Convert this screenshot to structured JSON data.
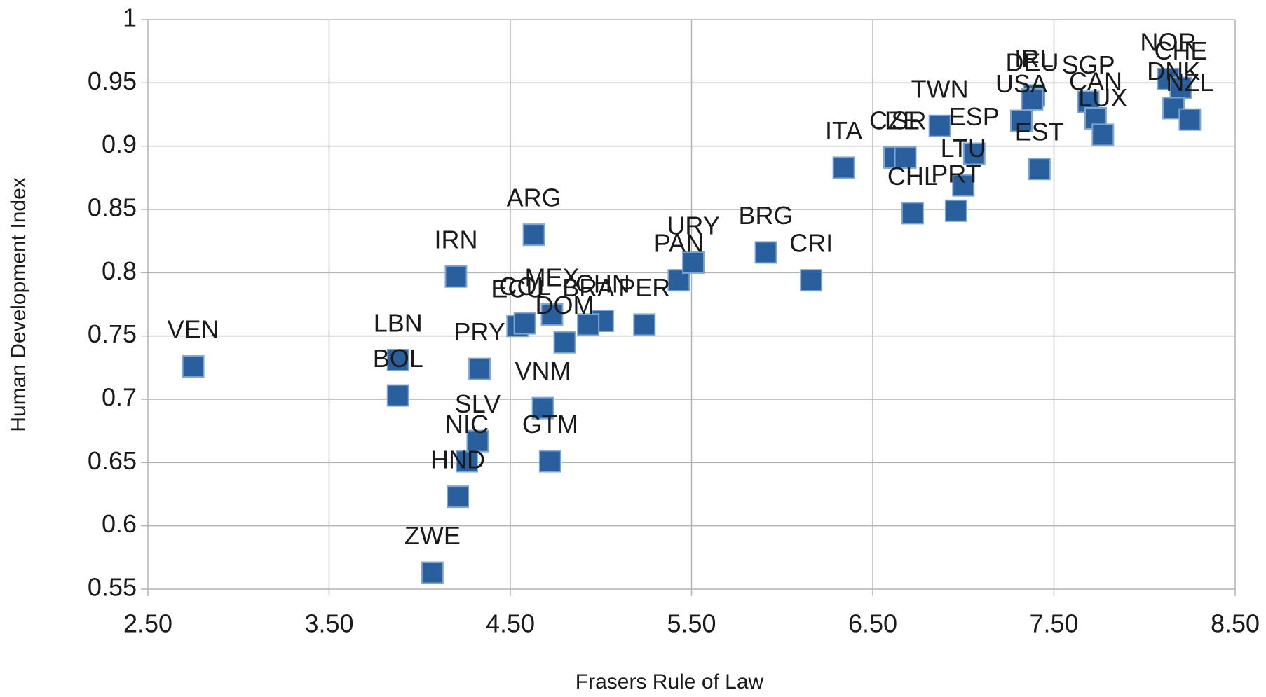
{
  "chart_data": {
    "type": "scatter",
    "x_label": "Frasers Rule of Law",
    "y_label": "Human Development Index",
    "color": "#2a5f9e",
    "grid": true,
    "xlim": [
      2.5,
      8.5
    ],
    "ylim": [
      0.55,
      1
    ],
    "xticks": [
      {
        "value": 2.5,
        "label": "2.50"
      },
      {
        "value": 3.5,
        "label": "3.50"
      },
      {
        "value": 4.5,
        "label": "4.50"
      },
      {
        "value": 5.5,
        "label": "5.50"
      },
      {
        "value": 6.5,
        "label": "6.50"
      },
      {
        "value": 7.5,
        "label": "7.50"
      },
      {
        "value": 8.5,
        "label": "8.50"
      }
    ],
    "yticks": [
      0.55,
      0.6,
      0.65,
      0.7,
      0.75,
      0.8,
      0.85,
      0.9,
      0.95,
      1
    ],
    "point_labels": [
      "VEN",
      "LBN",
      "BOL",
      "IRN",
      "ARG",
      "PRY",
      "ZWE",
      "HND",
      "NIC",
      "SLV",
      "VNM",
      "GTM",
      "DOM",
      "MEX",
      "ECU",
      "COL",
      "CHN",
      "BRA",
      "PER",
      "PAN",
      "URY",
      "BRG",
      "CRI",
      "ITA",
      "CZE",
      "ISR",
      "TWN",
      "ESP",
      "LTU",
      "PRT",
      "CHL",
      "USA",
      "IRL",
      "DEU",
      "EST",
      "SGP",
      "CAN",
      "LUX",
      "NOR",
      "CHE",
      "DNK",
      "NZL"
    ],
    "x": [
      2.75,
      3.88,
      3.88,
      4.2,
      4.63,
      4.33,
      4.07,
      4.21,
      4.26,
      4.32,
      4.68,
      4.72,
      4.8,
      4.73,
      4.54,
      4.58,
      5.01,
      4.93,
      5.24,
      5.43,
      5.51,
      5.91,
      6.16,
      6.34,
      6.62,
      6.68,
      6.87,
      7.06,
      7.0,
      6.96,
      6.72,
      7.32,
      7.39,
      7.38,
      7.42,
      7.69,
      7.73,
      7.77,
      8.13,
      8.2,
      8.16,
      8.25
    ],
    "values": [
      0.726,
      0.731,
      0.703,
      0.797,
      0.83,
      0.724,
      0.563,
      0.623,
      0.651,
      0.667,
      0.693,
      0.651,
      0.745,
      0.767,
      0.758,
      0.76,
      0.762,
      0.759,
      0.759,
      0.794,
      0.808,
      0.816,
      0.794,
      0.883,
      0.891,
      0.891,
      0.916,
      0.894,
      0.869,
      0.849,
      0.847,
      0.92,
      0.94,
      0.937,
      0.882,
      0.935,
      0.922,
      0.909,
      0.953,
      0.946,
      0.93,
      0.921
    ]
  }
}
